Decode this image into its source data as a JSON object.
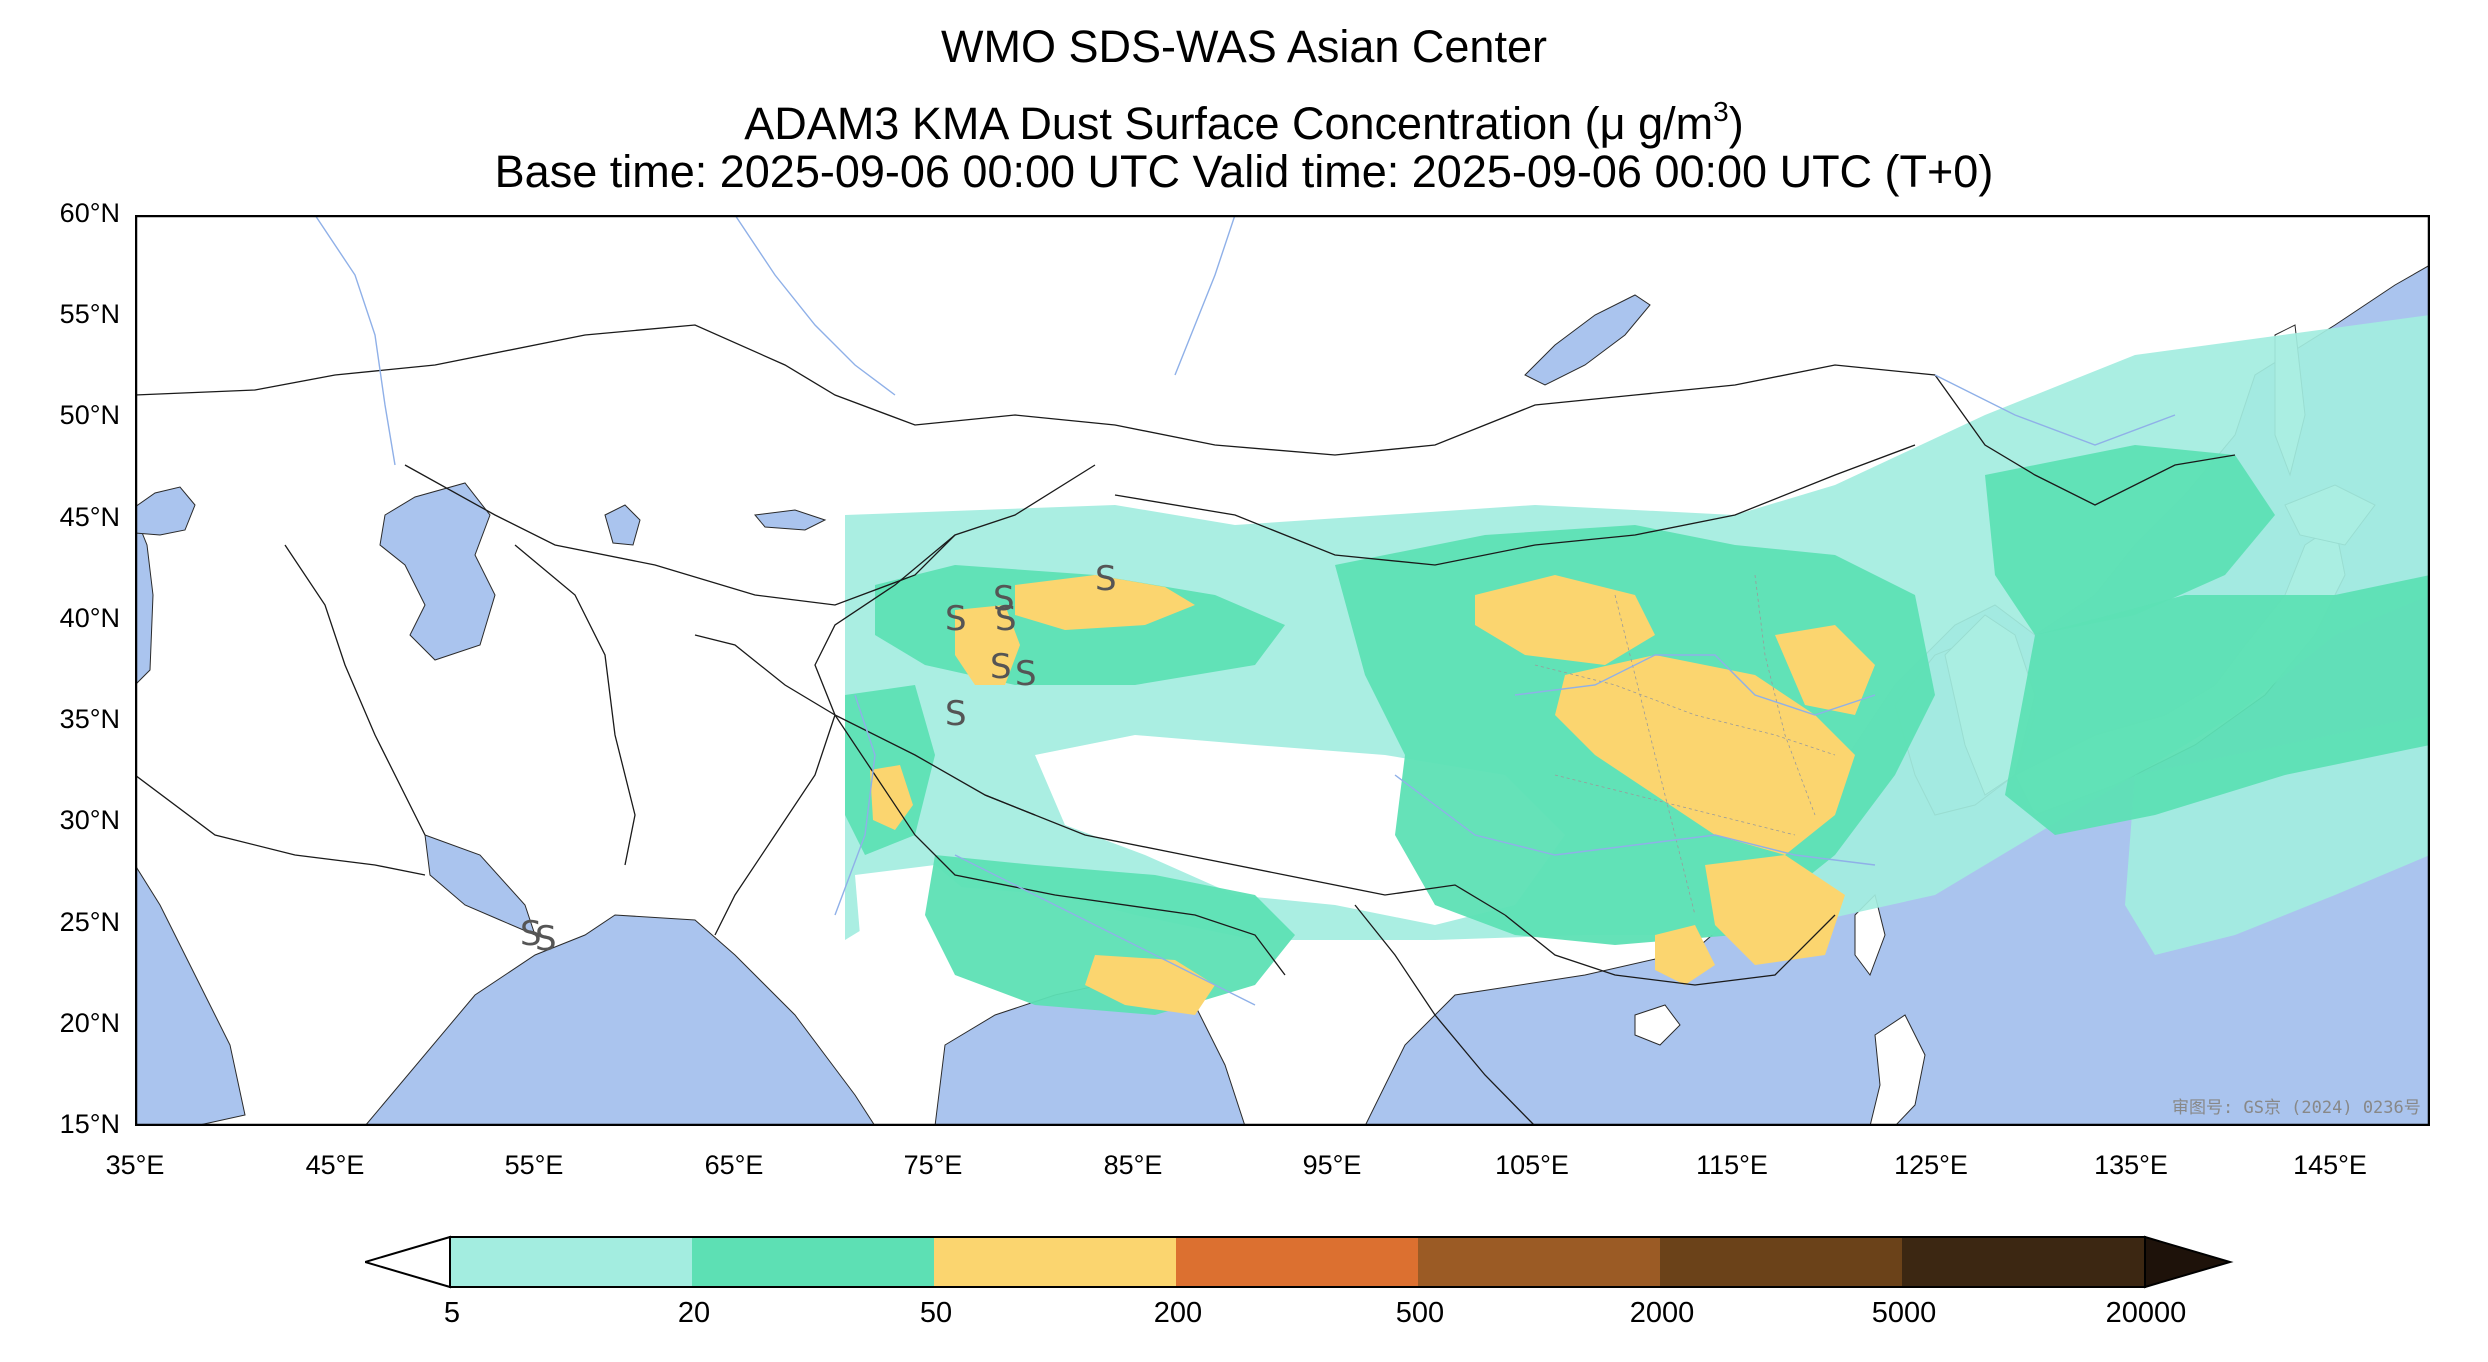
{
  "header": {
    "title_line1": "WMO SDS-WAS Asian Center",
    "title_line2_prefix": "ADAM3 KMA Dust Surface Concentration (",
    "title_line2_unit": "μ g/m",
    "title_line2_exp": "3",
    "title_line2_suffix": ")",
    "title_line3": "Base time: 2025-09-06 00:00 UTC Valid time: 2025-09-06 00:00 UTC (T+0)"
  },
  "map": {
    "lat_labels": [
      "60°N",
      "55°N",
      "50°N",
      "45°N",
      "40°N",
      "35°N",
      "30°N",
      "25°N",
      "20°N",
      "15°N"
    ],
    "lon_labels": [
      "35°E",
      "45°E",
      "55°E",
      "65°E",
      "75°E",
      "85°E",
      "95°E",
      "105°E",
      "115°E",
      "125°E",
      "135°E",
      "145°E"
    ],
    "extent": {
      "lon": [
        35,
        150
      ],
      "lat": [
        15,
        60
      ]
    },
    "ocean_color": "#aac4ee",
    "land_color": "#ffffff",
    "approval_text": "审图号: GS京 (2024) 0236号",
    "storm_symbol": "S"
  },
  "colorbar": {
    "ticks": [
      "5",
      "20",
      "50",
      "200",
      "500",
      "2000",
      "5000",
      "20000"
    ],
    "colors": [
      "#a3ede0",
      "#5de0b4",
      "#fbd56f",
      "#dc7030",
      "#9b5b25",
      "#6b4219",
      "#3c2712",
      "#1e120a"
    ],
    "extend": "both"
  }
}
